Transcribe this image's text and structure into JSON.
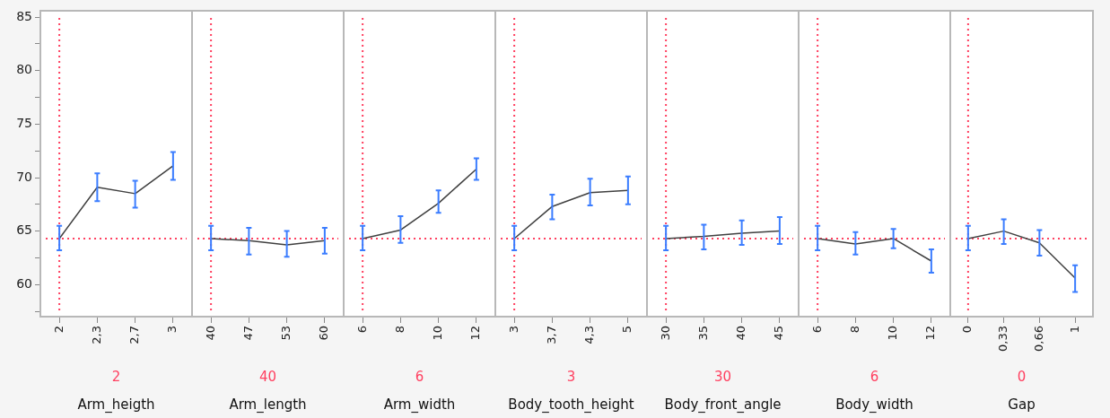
{
  "chart_data": [
    {
      "type": "line",
      "xlabel": "Arm_heigth",
      "categories": [
        "2",
        "2,3",
        "2,7",
        "3"
      ],
      "values": [
        64.3,
        69.1,
        68.5,
        71.1
      ],
      "errors": [
        [
          63.2,
          65.5
        ],
        [
          67.8,
          70.4
        ],
        [
          67.2,
          69.7
        ],
        [
          69.8,
          72.4
        ]
      ],
      "color": "#404040",
      "ylim": [
        57,
        85.6
      ],
      "yticks": [
        {
          "value": 57.5,
          "label": null
        },
        60,
        {
          "value": 62.5,
          "label": null
        },
        65,
        {
          "value": 67.5,
          "label": null
        },
        70,
        {
          "value": 72.5,
          "label": null
        },
        75,
        {
          "value": 77.5,
          "label": null
        },
        80,
        {
          "value": 82.5,
          "label": null
        },
        85
      ],
      "ref_lines": [
        {
          "axis": "y",
          "value": 64.3,
          "color": "#ff4060",
          "line_style": "dotted"
        },
        {
          "axis": "x",
          "value": "2",
          "label": "2",
          "color": "#ff4060",
          "line_style": "dotted"
        }
      ],
      "marker": "none",
      "grid": false,
      "legend": false
    },
    {
      "type": "line",
      "xlabel": "Arm_length",
      "categories": [
        "40",
        "47",
        "53",
        "60"
      ],
      "values": [
        64.3,
        64.1,
        63.7,
        64.1
      ],
      "errors": [
        [
          63.2,
          65.5
        ],
        [
          62.8,
          65.3
        ],
        [
          62.6,
          65.0
        ],
        [
          62.9,
          65.3
        ]
      ],
      "color": "#404040",
      "ylim": [
        57,
        85.6
      ],
      "tick_labels": "x",
      "ref_lines": [
        {
          "axis": "y",
          "value": 64.3,
          "color": "#ff4060",
          "line_style": "dotted"
        },
        {
          "axis": "x",
          "value": "40",
          "label": "40",
          "color": "#ff4060",
          "line_style": "dotted"
        }
      ],
      "marker": "none",
      "grid": false,
      "legend": false
    },
    {
      "type": "line",
      "xlabel": "Arm_width",
      "categories": [
        "6",
        "8",
        "10",
        "12"
      ],
      "values": [
        64.3,
        65.1,
        67.6,
        70.8
      ],
      "errors": [
        [
          63.2,
          65.5
        ],
        [
          63.9,
          66.4
        ],
        [
          66.7,
          68.8
        ],
        [
          69.8,
          71.8
        ]
      ],
      "color": "#404040",
      "ylim": [
        57,
        85.6
      ],
      "tick_labels": "x",
      "ref_lines": [
        {
          "axis": "y",
          "value": 64.3,
          "color": "#ff4060",
          "line_style": "dotted"
        },
        {
          "axis": "x",
          "value": "6",
          "label": "6",
          "color": "#ff4060",
          "line_style": "dotted"
        }
      ],
      "marker": "none",
      "grid": false,
      "legend": false
    },
    {
      "type": "line",
      "xlabel": "Body_tooth_height",
      "categories": [
        "3",
        "3,7",
        "4,3",
        "5"
      ],
      "values": [
        64.3,
        67.3,
        68.6,
        68.8
      ],
      "errors": [
        [
          63.2,
          65.5
        ],
        [
          66.1,
          68.4
        ],
        [
          67.4,
          69.9
        ],
        [
          67.5,
          70.1
        ]
      ],
      "color": "#404040",
      "ylim": [
        57,
        85.6
      ],
      "tick_labels": "x",
      "ref_lines": [
        {
          "axis": "y",
          "value": 64.3,
          "color": "#ff4060",
          "line_style": "dotted"
        },
        {
          "axis": "x",
          "value": "3",
          "label": "3",
          "color": "#ff4060",
          "line_style": "dotted"
        }
      ],
      "marker": "none",
      "grid": false,
      "legend": false
    },
    {
      "type": "line",
      "xlabel": "Body_front_angle",
      "categories": [
        "30",
        "35",
        "40",
        "45"
      ],
      "values": [
        64.3,
        64.5,
        64.8,
        65.0
      ],
      "errors": [
        [
          63.2,
          65.5
        ],
        [
          63.3,
          65.6
        ],
        [
          63.7,
          66.0
        ],
        [
          63.8,
          66.3
        ]
      ],
      "color": "#404040",
      "ylim": [
        57,
        85.6
      ],
      "tick_labels": "x",
      "ref_lines": [
        {
          "axis": "y",
          "value": 64.3,
          "color": "#ff4060",
          "line_style": "dotted"
        },
        {
          "axis": "x",
          "value": "30",
          "label": "30",
          "color": "#ff4060",
          "line_style": "dotted"
        }
      ],
      "marker": "none",
      "grid": false,
      "legend": false
    },
    {
      "type": "line",
      "xlabel": "Body_width",
      "categories": [
        "6",
        "8",
        "10",
        "12"
      ],
      "values": [
        64.3,
        63.8,
        64.3,
        62.2
      ],
      "errors": [
        [
          63.2,
          65.5
        ],
        [
          62.8,
          64.9
        ],
        [
          63.4,
          65.2
        ],
        [
          61.1,
          63.3
        ]
      ],
      "color": "#404040",
      "ylim": [
        57,
        85.6
      ],
      "tick_labels": "x",
      "ref_lines": [
        {
          "axis": "y",
          "value": 64.3,
          "color": "#ff4060",
          "line_style": "dotted"
        },
        {
          "axis": "x",
          "value": "6",
          "label": "6",
          "color": "#ff4060",
          "line_style": "dotted"
        }
      ],
      "marker": "none",
      "grid": false,
      "legend": false
    },
    {
      "type": "line",
      "xlabel": "Gap",
      "categories": [
        "0",
        "0,33",
        "0,66",
        "1"
      ],
      "values": [
        64.3,
        65.0,
        63.9,
        60.6
      ],
      "errors": [
        [
          63.2,
          65.5
        ],
        [
          63.8,
          66.1
        ],
        [
          62.7,
          65.1
        ],
        [
          59.3,
          61.8
        ]
      ],
      "color": "#404040",
      "ylim": [
        57,
        85.6
      ],
      "tick_labels": "x",
      "ref_lines": [
        {
          "axis": "y",
          "value": 64.3,
          "color": "#ff4060",
          "line_style": "dotted"
        },
        {
          "axis": "x",
          "value": "0",
          "label": "0",
          "color": "#ff4060",
          "line_style": "dotted"
        }
      ],
      "marker": "none",
      "grid": false,
      "legend": false
    }
  ]
}
